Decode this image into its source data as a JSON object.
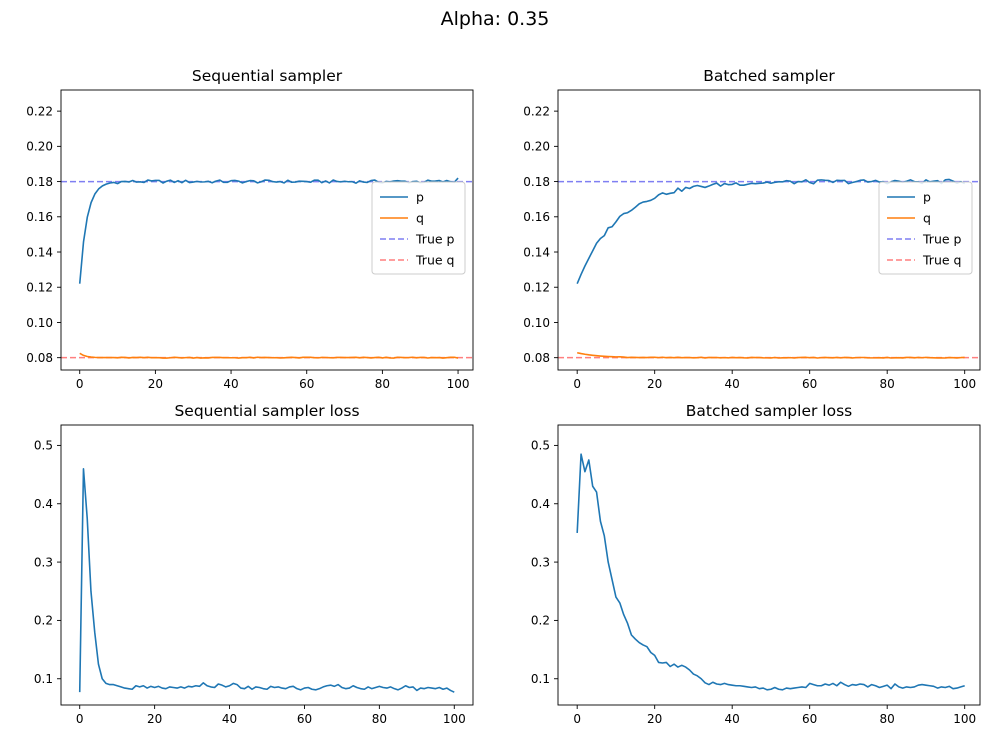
{
  "figure": {
    "suptitle": "Alpha: 0.35"
  },
  "colors": {
    "p": "#1f77b4",
    "q": "#ff7f0e",
    "true_p": "#7f7ff2",
    "true_q": "#ff7f7f"
  },
  "chart_data": [
    {
      "id": "seq",
      "type": "line",
      "title": "Sequential sampler",
      "xlabel": "",
      "ylabel": "",
      "xlim": [
        -4.95,
        103.95
      ],
      "ylim": [
        0.073,
        0.232
      ],
      "xticks": [
        0,
        20,
        40,
        60,
        80,
        100
      ],
      "yticks": [
        0.08,
        0.1,
        0.12,
        0.14,
        0.16,
        0.18,
        0.2,
        0.22
      ],
      "ytick_labels": [
        "0.08",
        "0.10",
        "0.12",
        "0.14",
        "0.16",
        "0.18",
        "0.20",
        "0.22"
      ],
      "legend": {
        "placement": "center-right",
        "entries": [
          "p",
          "q",
          "True p",
          "True q"
        ]
      },
      "hlines": [
        {
          "name": "True p",
          "y": 0.18,
          "color": "#7f7ff2"
        },
        {
          "name": "True q",
          "y": 0.08,
          "color": "#ff7f7f"
        }
      ],
      "series": [
        {
          "name": "p",
          "color": "#1f77b4",
          "type": "p_seq"
        },
        {
          "name": "q",
          "color": "#ff7f0e",
          "type": "q_seq"
        }
      ]
    },
    {
      "id": "bat",
      "type": "line",
      "title": "Batched sampler",
      "xlabel": "",
      "ylabel": "",
      "xlim": [
        -4.95,
        103.95
      ],
      "ylim": [
        0.073,
        0.232
      ],
      "xticks": [
        0,
        20,
        40,
        60,
        80,
        100
      ],
      "yticks": [
        0.08,
        0.1,
        0.12,
        0.14,
        0.16,
        0.18,
        0.2,
        0.22
      ],
      "ytick_labels": [
        "0.08",
        "0.10",
        "0.12",
        "0.14",
        "0.16",
        "0.18",
        "0.20",
        "0.22"
      ],
      "legend": {
        "placement": "center-right",
        "entries": [
          "p",
          "q",
          "True p",
          "True q"
        ]
      },
      "hlines": [
        {
          "name": "True p",
          "y": 0.18,
          "color": "#7f7ff2"
        },
        {
          "name": "True q",
          "y": 0.08,
          "color": "#ff7f7f"
        }
      ],
      "series": [
        {
          "name": "p",
          "color": "#1f77b4",
          "type": "p_bat"
        },
        {
          "name": "q",
          "color": "#ff7f0e",
          "type": "q_bat"
        }
      ]
    },
    {
      "id": "seqloss",
      "type": "line",
      "title": "Sequential sampler loss",
      "xlabel": "",
      "ylabel": "",
      "xlim": [
        -5,
        105
      ],
      "ylim": [
        0.055,
        0.535
      ],
      "xticks": [
        0,
        20,
        40,
        60,
        80,
        100
      ],
      "yticks": [
        0.1,
        0.2,
        0.3,
        0.4,
        0.5
      ],
      "ytick_labels": [
        "0.1",
        "0.2",
        "0.3",
        "0.4",
        "0.5"
      ],
      "series": [
        {
          "name": "",
          "color": "#1f77b4",
          "x_start": 0,
          "values": [
            0.077,
            0.46,
            0.375,
            0.25,
            0.18,
            0.125,
            0.1,
            0.092,
            0.09,
            0.09,
            0.088,
            0.086,
            0.084,
            0.083,
            0.082,
            0.088,
            0.086,
            0.088,
            0.084,
            0.087,
            0.085,
            0.087,
            0.084,
            0.083,
            0.086,
            0.085,
            0.084,
            0.086,
            0.084,
            0.087,
            0.086,
            0.088,
            0.087,
            0.093,
            0.088,
            0.086,
            0.085,
            0.091,
            0.089,
            0.086,
            0.088,
            0.092,
            0.09,
            0.084,
            0.083,
            0.087,
            0.082,
            0.086,
            0.085,
            0.083,
            0.082,
            0.087,
            0.085,
            0.086,
            0.084,
            0.083,
            0.086,
            0.087,
            0.083,
            0.081,
            0.084,
            0.085,
            0.082,
            0.081,
            0.083,
            0.086,
            0.088,
            0.089,
            0.087,
            0.09,
            0.085,
            0.083,
            0.084,
            0.088,
            0.085,
            0.083,
            0.082,
            0.086,
            0.083,
            0.085,
            0.087,
            0.085,
            0.084,
            0.086,
            0.083,
            0.081,
            0.084,
            0.088,
            0.085,
            0.086,
            0.08,
            0.084,
            0.083,
            0.085,
            0.084,
            0.083,
            0.085,
            0.082,
            0.084,
            0.08,
            0.077
          ]
        }
      ]
    },
    {
      "id": "batloss",
      "type": "line",
      "title": "Batched sampler loss",
      "xlabel": "",
      "ylabel": "",
      "xlim": [
        -4.95,
        103.95
      ],
      "ylim": [
        0.055,
        0.535
      ],
      "xticks": [
        0,
        20,
        40,
        60,
        80,
        100
      ],
      "yticks": [
        0.1,
        0.2,
        0.3,
        0.4,
        0.5
      ],
      "ytick_labels": [
        "0.1",
        "0.2",
        "0.3",
        "0.4",
        "0.5"
      ],
      "series": [
        {
          "name": "",
          "color": "#1f77b4",
          "x_start": 0,
          "values": [
            0.35,
            0.485,
            0.455,
            0.475,
            0.43,
            0.42,
            0.37,
            0.345,
            0.3,
            0.27,
            0.24,
            0.23,
            0.21,
            0.195,
            0.175,
            0.168,
            0.162,
            0.158,
            0.155,
            0.145,
            0.14,
            0.128,
            0.127,
            0.128,
            0.121,
            0.125,
            0.12,
            0.123,
            0.12,
            0.115,
            0.108,
            0.105,
            0.1,
            0.093,
            0.09,
            0.094,
            0.091,
            0.09,
            0.092,
            0.09,
            0.089,
            0.088,
            0.088,
            0.087,
            0.086,
            0.085,
            0.086,
            0.083,
            0.084,
            0.081,
            0.082,
            0.085,
            0.082,
            0.081,
            0.084,
            0.083,
            0.084,
            0.085,
            0.086,
            0.085,
            0.092,
            0.09,
            0.088,
            0.088,
            0.091,
            0.089,
            0.092,
            0.088,
            0.094,
            0.09,
            0.087,
            0.09,
            0.089,
            0.091,
            0.09,
            0.086,
            0.09,
            0.088,
            0.085,
            0.087,
            0.089,
            0.083,
            0.091,
            0.086,
            0.084,
            0.086,
            0.085,
            0.086,
            0.089,
            0.09,
            0.089,
            0.088,
            0.087,
            0.084,
            0.086,
            0.085,
            0.087,
            0.083,
            0.084,
            0.086,
            0.088
          ]
        }
      ]
    }
  ]
}
